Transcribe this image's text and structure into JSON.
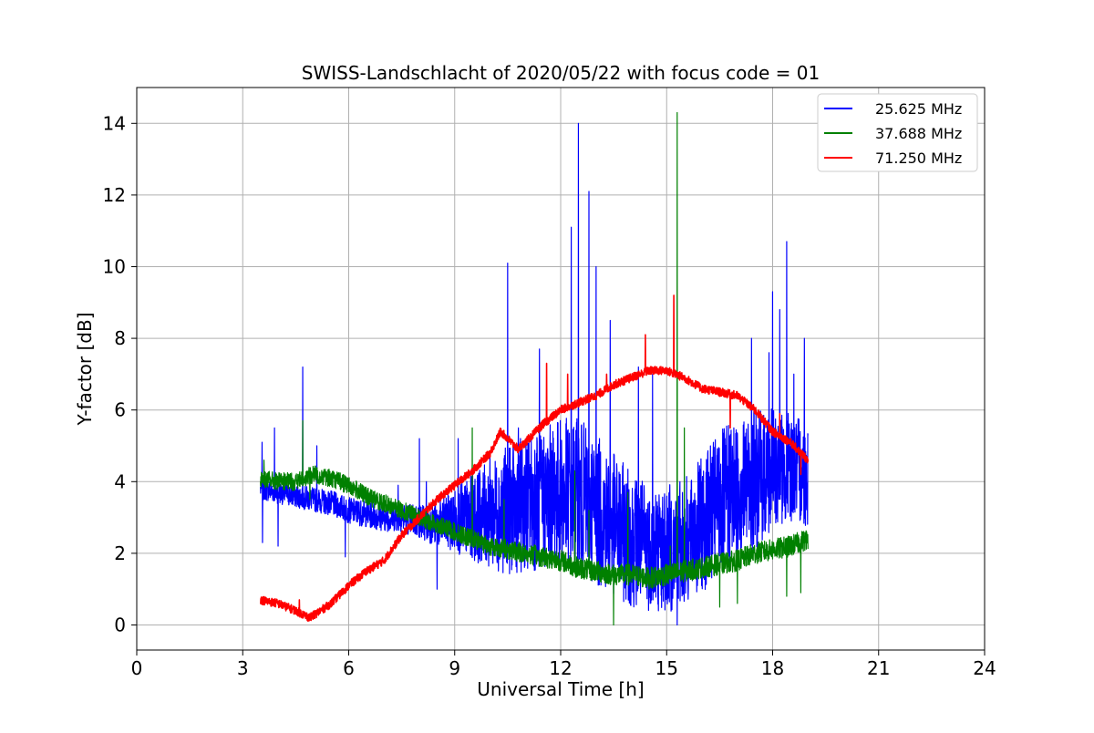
{
  "chart_data": {
    "type": "line",
    "title": "SWISS-Landschlacht of 2020/05/22 with focus code = 01",
    "xlabel": "Universal Time [h]",
    "ylabel": "Y-factor [dB]",
    "xlim": [
      0,
      24
    ],
    "ylim": [
      -0.7,
      15
    ],
    "xticks": [
      "0",
      "3",
      "6",
      "9",
      "12",
      "15",
      "18",
      "21",
      "24"
    ],
    "yticks": [
      "0",
      "2",
      "4",
      "6",
      "8",
      "10",
      "12",
      "14"
    ],
    "grid": true,
    "legend_position": "top-right",
    "series": [
      {
        "name": "25.625 MHz",
        "color": "#0000ff",
        "base": [
          [
            3.5,
            3.8
          ],
          [
            4,
            3.7
          ],
          [
            4.5,
            3.6
          ],
          [
            5,
            3.5
          ],
          [
            5.5,
            3.4
          ],
          [
            6,
            3.2
          ],
          [
            6.5,
            3.1
          ],
          [
            7,
            3.0
          ],
          [
            7.5,
            3.0
          ],
          [
            8,
            2.9
          ],
          [
            8.5,
            2.8
          ],
          [
            9,
            2.9
          ],
          [
            9.5,
            3.0
          ],
          [
            10,
            3.1
          ],
          [
            10.5,
            3.2
          ],
          [
            11,
            3.4
          ],
          [
            11.5,
            3.5
          ],
          [
            12,
            3.7
          ],
          [
            12.5,
            3.6
          ],
          [
            13,
            3.2
          ],
          [
            13.5,
            2.8
          ],
          [
            14,
            2.4
          ],
          [
            14.5,
            2.2
          ],
          [
            15,
            2.1
          ],
          [
            15.5,
            2.3
          ],
          [
            16,
            2.8
          ],
          [
            16.5,
            3.4
          ],
          [
            17,
            3.8
          ],
          [
            17.5,
            4.0
          ],
          [
            18,
            4.3
          ],
          [
            18.5,
            4.4
          ],
          [
            19,
            4.2
          ]
        ],
        "spread": [
          [
            3.5,
            0.3
          ],
          [
            7.5,
            0.4
          ],
          [
            8.5,
            0.6
          ],
          [
            9.5,
            1.2
          ],
          [
            10.5,
            1.8
          ],
          [
            11.5,
            2.0
          ],
          [
            12.5,
            2.2
          ],
          [
            13.5,
            2.0
          ],
          [
            14.5,
            1.8
          ],
          [
            15.5,
            1.8
          ],
          [
            16.5,
            2.0
          ],
          [
            17.5,
            2.0
          ],
          [
            18.5,
            1.5
          ],
          [
            19,
            1.5
          ]
        ],
        "spikes": [
          [
            3.55,
            5.1
          ],
          [
            3.56,
            2.3
          ],
          [
            3.9,
            5.5
          ],
          [
            4.0,
            2.2
          ],
          [
            4.7,
            7.2
          ],
          [
            5.1,
            5.0
          ],
          [
            5.9,
            1.9
          ],
          [
            7.4,
            3.9
          ],
          [
            8.0,
            5.2
          ],
          [
            8.2,
            4.0
          ],
          [
            8.5,
            1.0
          ],
          [
            9.1,
            5.2
          ],
          [
            10.0,
            4.7
          ],
          [
            10.5,
            10.1
          ],
          [
            10.8,
            5.5
          ],
          [
            11.4,
            7.7
          ],
          [
            12.3,
            11.1
          ],
          [
            12.5,
            14.0
          ],
          [
            12.8,
            12.1
          ],
          [
            13.0,
            10.0
          ],
          [
            13.4,
            8.5
          ],
          [
            14.2,
            7.2
          ],
          [
            14.6,
            7.0
          ],
          [
            15.3,
            0.0
          ],
          [
            15.7,
            4.0
          ],
          [
            17.4,
            8.0
          ],
          [
            17.9,
            7.6
          ],
          [
            18.0,
            9.3
          ],
          [
            18.2,
            8.8
          ],
          [
            18.4,
            10.7
          ],
          [
            18.6,
            7.0
          ],
          [
            18.9,
            8.0
          ]
        ]
      },
      {
        "name": "37.688 MHz",
        "color": "#008000",
        "base": [
          [
            3.5,
            4.1
          ],
          [
            4,
            4.0
          ],
          [
            4.5,
            4.0
          ],
          [
            5,
            4.2
          ],
          [
            5.5,
            4.1
          ],
          [
            6,
            3.9
          ],
          [
            6.5,
            3.6
          ],
          [
            7,
            3.4
          ],
          [
            7.5,
            3.2
          ],
          [
            8,
            3.0
          ],
          [
            8.5,
            2.8
          ],
          [
            9,
            2.6
          ],
          [
            9.5,
            2.4
          ],
          [
            10,
            2.2
          ],
          [
            10.5,
            2.1
          ],
          [
            11,
            2.0
          ],
          [
            11.5,
            1.9
          ],
          [
            12,
            1.8
          ],
          [
            12.5,
            1.6
          ],
          [
            13,
            1.5
          ],
          [
            13.5,
            1.4
          ],
          [
            14,
            1.4
          ],
          [
            14.5,
            1.3
          ],
          [
            15,
            1.4
          ],
          [
            15.5,
            1.5
          ],
          [
            16,
            1.6
          ],
          [
            16.5,
            1.7
          ],
          [
            17,
            1.8
          ],
          [
            17.5,
            2.0
          ],
          [
            18,
            2.1
          ],
          [
            18.5,
            2.2
          ],
          [
            19,
            2.4
          ]
        ],
        "spread": [
          [
            3.5,
            0.25
          ],
          [
            9,
            0.25
          ],
          [
            12,
            0.3
          ],
          [
            15,
            0.3
          ],
          [
            19,
            0.3
          ]
        ],
        "spikes": [
          [
            3.6,
            4.6
          ],
          [
            4.7,
            5.7
          ],
          [
            4.9,
            3.5
          ],
          [
            9.5,
            5.5
          ],
          [
            10.4,
            3.5
          ],
          [
            12.4,
            4.3
          ],
          [
            12.8,
            3.2
          ],
          [
            13.5,
            0.0
          ],
          [
            13.9,
            3.7
          ],
          [
            15.1,
            2.2
          ],
          [
            15.3,
            14.3
          ],
          [
            15.5,
            5.5
          ],
          [
            16.5,
            0.5
          ],
          [
            17.0,
            0.6
          ],
          [
            18.4,
            0.8
          ],
          [
            18.8,
            0.9
          ]
        ]
      },
      {
        "name": "71.250 MHz",
        "color": "#ff0000",
        "base": [
          [
            3.5,
            0.7
          ],
          [
            4,
            0.6
          ],
          [
            4.5,
            0.4
          ],
          [
            4.9,
            0.2
          ],
          [
            5.2,
            0.4
          ],
          [
            5.5,
            0.6
          ],
          [
            6,
            1.1
          ],
          [
            6.5,
            1.5
          ],
          [
            7,
            1.8
          ],
          [
            7.5,
            2.5
          ],
          [
            8,
            3.0
          ],
          [
            8.5,
            3.5
          ],
          [
            9,
            3.9
          ],
          [
            9.5,
            4.3
          ],
          [
            10,
            4.8
          ],
          [
            10.3,
            5.4
          ],
          [
            10.6,
            5.1
          ],
          [
            10.8,
            4.9
          ],
          [
            11,
            5.1
          ],
          [
            11.5,
            5.6
          ],
          [
            12,
            6.0
          ],
          [
            12.5,
            6.2
          ],
          [
            13,
            6.4
          ],
          [
            13.5,
            6.7
          ],
          [
            14,
            6.9
          ],
          [
            14.5,
            7.1
          ],
          [
            15,
            7.1
          ],
          [
            15.5,
            6.9
          ],
          [
            16,
            6.6
          ],
          [
            16.5,
            6.5
          ],
          [
            17,
            6.4
          ],
          [
            17.5,
            6.0
          ],
          [
            18,
            5.4
          ],
          [
            18.5,
            5.1
          ],
          [
            19,
            4.6
          ]
        ],
        "spread": [
          [
            3.5,
            0.12
          ],
          [
            19,
            0.12
          ]
        ],
        "spikes": [
          [
            4.6,
            0.7
          ],
          [
            11.6,
            7.3
          ],
          [
            12.2,
            7.0
          ],
          [
            13.3,
            7.0
          ],
          [
            14.4,
            8.1
          ],
          [
            15.2,
            9.2
          ],
          [
            16.8,
            5.5
          ],
          [
            18.2,
            5.9
          ],
          [
            18.8,
            4.2
          ]
        ]
      }
    ]
  }
}
